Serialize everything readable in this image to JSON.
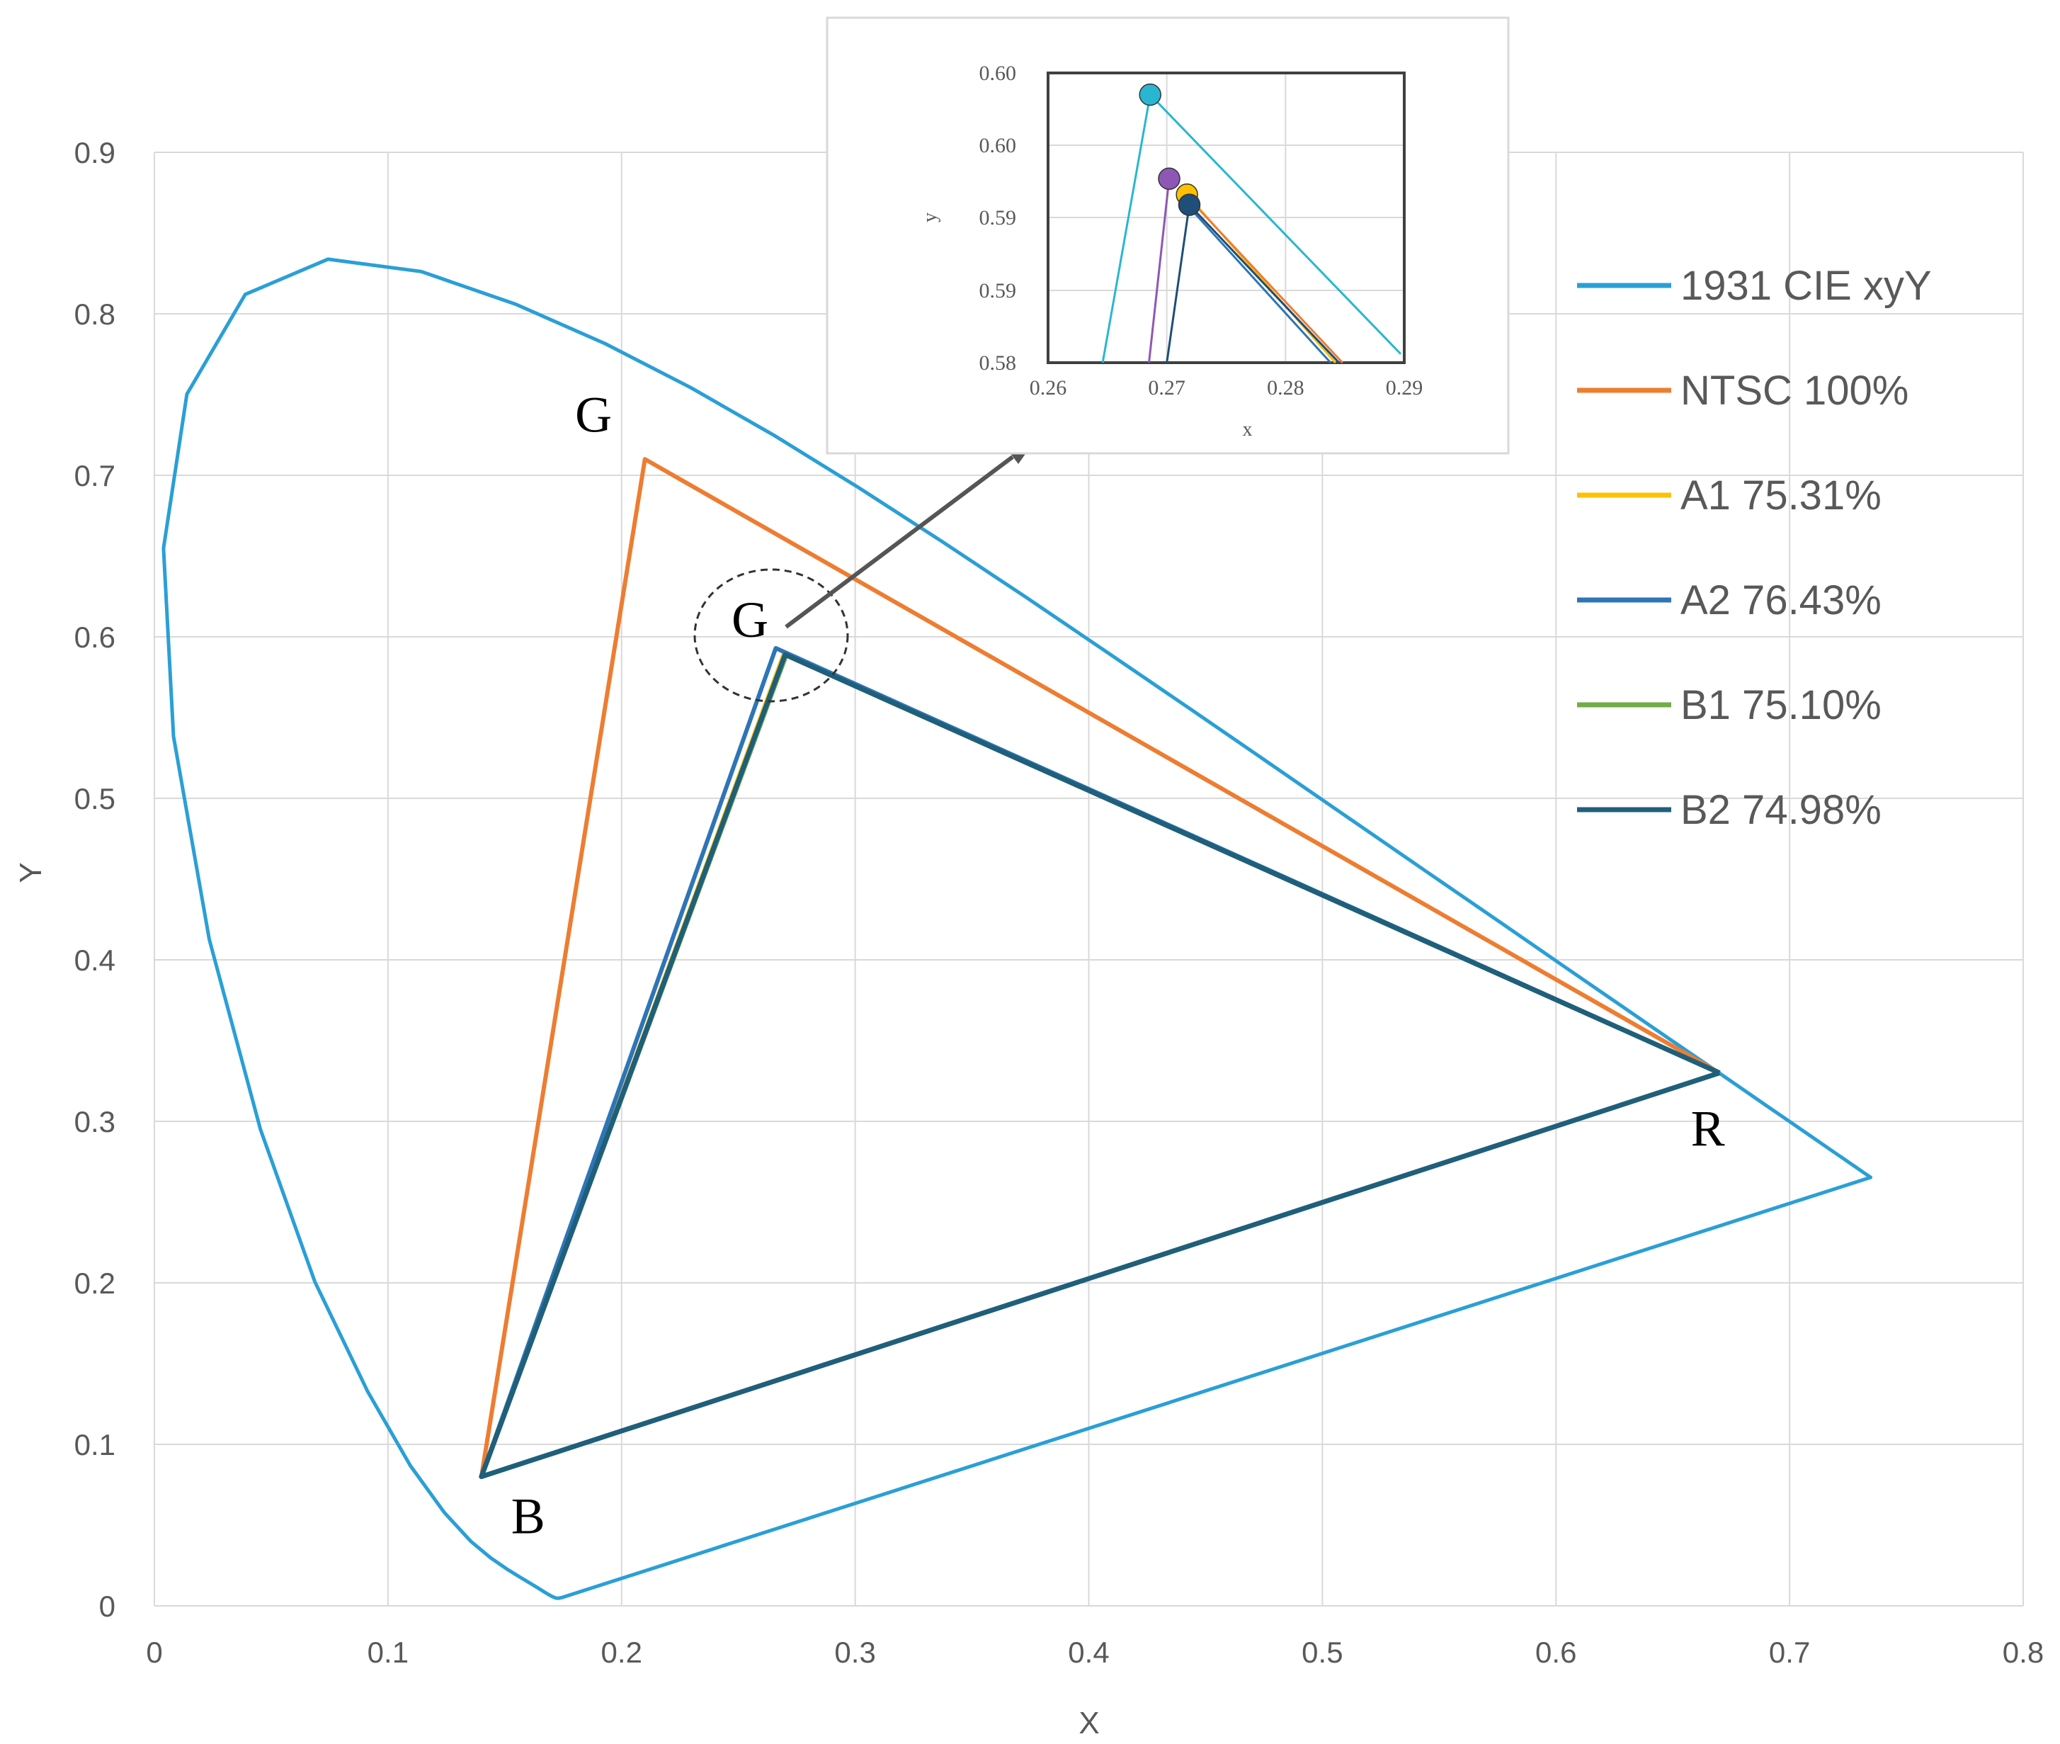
{
  "chart_data": {
    "type": "line",
    "xlabel": "X",
    "ylabel": "Y",
    "xlim": [
      0,
      0.8
    ],
    "ylim": [
      0,
      0.9
    ],
    "x_ticks": [
      "0",
      "0.1",
      "0.2",
      "0.3",
      "0.4",
      "0.5",
      "0.6",
      "0.7",
      "0.8"
    ],
    "y_ticks": [
      "0",
      "0.1",
      "0.2",
      "0.3",
      "0.4",
      "0.5",
      "0.6",
      "0.7",
      "0.8",
      "0.9"
    ],
    "grid": true,
    "legend_position": "right",
    "series": [
      {
        "name": "1931 CIE xyY",
        "color": "#2a9fd6",
        "points": [
          [
            0.1741,
            0.005
          ],
          [
            0.1738,
            0.0049
          ],
          [
            0.1736,
            0.0049
          ],
          [
            0.1733,
            0.0048
          ],
          [
            0.173,
            0.0048
          ],
          [
            0.1726,
            0.0048
          ],
          [
            0.1721,
            0.0048
          ],
          [
            0.1714,
            0.0051
          ],
          [
            0.1703,
            0.0058
          ],
          [
            0.1689,
            0.0069
          ],
          [
            0.1669,
            0.0086
          ],
          [
            0.1644,
            0.0109
          ],
          [
            0.1611,
            0.0138
          ],
          [
            0.1566,
            0.0177
          ],
          [
            0.151,
            0.0227
          ],
          [
            0.144,
            0.0297
          ],
          [
            0.1355,
            0.0399
          ],
          [
            0.1241,
            0.0578
          ],
          [
            0.1096,
            0.0868
          ],
          [
            0.0913,
            0.1327
          ],
          [
            0.0687,
            0.2007
          ],
          [
            0.0454,
            0.295
          ],
          [
            0.0235,
            0.4127
          ],
          [
            0.0082,
            0.5384
          ],
          [
            0.0039,
            0.6548
          ],
          [
            0.0139,
            0.7502
          ],
          [
            0.0389,
            0.812
          ],
          [
            0.0743,
            0.8338
          ],
          [
            0.1142,
            0.8262
          ],
          [
            0.1547,
            0.8059
          ],
          [
            0.1929,
            0.7816
          ],
          [
            0.2296,
            0.7543
          ],
          [
            0.2658,
            0.7243
          ],
          [
            0.3016,
            0.6923
          ],
          [
            0.3373,
            0.6589
          ],
          [
            0.3731,
            0.6245
          ],
          [
            0.4087,
            0.5896
          ],
          [
            0.4441,
            0.5547
          ],
          [
            0.4788,
            0.5202
          ],
          [
            0.5125,
            0.4866
          ],
          [
            0.5448,
            0.4544
          ],
          [
            0.5752,
            0.4242
          ],
          [
            0.6029,
            0.3965
          ],
          [
            0.627,
            0.3725
          ],
          [
            0.6482,
            0.3514
          ],
          [
            0.6658,
            0.334
          ],
          [
            0.6801,
            0.3197
          ],
          [
            0.6915,
            0.3083
          ],
          [
            0.7006,
            0.2993
          ],
          [
            0.7079,
            0.292
          ],
          [
            0.714,
            0.2859
          ],
          [
            0.719,
            0.2809
          ],
          [
            0.723,
            0.277
          ],
          [
            0.726,
            0.274
          ],
          [
            0.7283,
            0.2717
          ],
          [
            0.73,
            0.27
          ],
          [
            0.732,
            0.268
          ],
          [
            0.7347,
            0.2653
          ],
          [
            0.1741,
            0.005
          ]
        ]
      },
      {
        "name": "NTSC 100%",
        "color": "#ed7d31",
        "points": [
          [
            0.67,
            0.33
          ],
          [
            0.21,
            0.71
          ],
          [
            0.14,
            0.08
          ],
          [
            0.67,
            0.33
          ]
        ]
      },
      {
        "name": "A1 75.31%",
        "color": "#ffc000",
        "points": [
          [
            0.67,
            0.33
          ],
          [
            0.2695,
            0.5895
          ],
          [
            0.14,
            0.08
          ],
          [
            0.67,
            0.33
          ]
        ]
      },
      {
        "name": "A2 76.43%",
        "color": "#2e75b6",
        "points": [
          [
            0.67,
            0.33
          ],
          [
            0.266,
            0.593
          ],
          [
            0.14,
            0.08
          ],
          [
            0.67,
            0.33
          ]
        ]
      },
      {
        "name": "B1 75.10%",
        "color": "#70ad47",
        "points": [
          [
            0.67,
            0.33
          ],
          [
            0.2705,
            0.5885
          ],
          [
            0.14,
            0.08
          ],
          [
            0.67,
            0.33
          ]
        ]
      },
      {
        "name": "B2 74.98%",
        "color": "#1f5f7a",
        "points": [
          [
            0.67,
            0.33
          ],
          [
            0.27,
            0.589
          ],
          [
            0.14,
            0.08
          ],
          [
            0.67,
            0.33
          ]
        ]
      }
    ],
    "annotations": [
      {
        "text": "G",
        "x": 0.188,
        "y": 0.727
      },
      {
        "text": "G",
        "x": 0.255,
        "y": 0.6
      },
      {
        "text": "R",
        "x": 0.665,
        "y": 0.285
      },
      {
        "text": "B",
        "x": 0.16,
        "y": 0.045
      }
    ],
    "inset": {
      "xlabel": "x",
      "ylabel": "y",
      "xlim": [
        0.26,
        0.29
      ],
      "ylim": [
        0.58,
        0.6
      ],
      "x_ticks": [
        "0.26",
        "0.27",
        "0.28",
        "0.29"
      ],
      "y_ticks": [
        "0.60",
        "0.60",
        "0.59",
        "0.59",
        "0.58"
      ],
      "markers": [
        {
          "series": "NTSC 100%",
          "color": "#29b6d1",
          "x": 0.2686,
          "y": 0.5985
        },
        {
          "series": "A2 76.43%",
          "color": "#8e57b5",
          "x": 0.2702,
          "y": 0.5927
        },
        {
          "series": "A1 75.31%",
          "color": "#ffc000",
          "x": 0.2717,
          "y": 0.5916
        },
        {
          "series": "B2 74.98%",
          "color": "#1f4e79",
          "x": 0.2719,
          "y": 0.5909
        }
      ],
      "lines": [
        {
          "color": "#29b6d1",
          "points": [
            [
              0.2686,
              0.5985
            ],
            [
              0.2646,
              0.58
            ]
          ]
        },
        {
          "color": "#29b6d1",
          "points": [
            [
              0.2686,
              0.5985
            ],
            [
              0.2897,
              0.5806
            ]
          ]
        },
        {
          "color": "#8e57b5",
          "points": [
            [
              0.2702,
              0.5927
            ],
            [
              0.2685,
              0.58
            ]
          ]
        },
        {
          "color": "#ffc000",
          "points": [
            [
              0.2717,
              0.5916
            ],
            [
              0.2842,
              0.58
            ]
          ]
        },
        {
          "color": "#ed7d31",
          "points": [
            [
              0.2719,
              0.5913
            ],
            [
              0.2848,
              0.58
            ]
          ]
        },
        {
          "color": "#2e75b6",
          "points": [
            [
              0.2717,
              0.5909
            ],
            [
              0.2838,
              0.58
            ]
          ]
        },
        {
          "color": "#1f4e79",
          "points": [
            [
              0.2719,
              0.5909
            ],
            [
              0.27,
              0.58
            ]
          ]
        },
        {
          "color": "#1f4e79",
          "points": [
            [
              0.2719,
              0.5909
            ],
            [
              0.2845,
              0.58
            ]
          ]
        }
      ]
    }
  }
}
